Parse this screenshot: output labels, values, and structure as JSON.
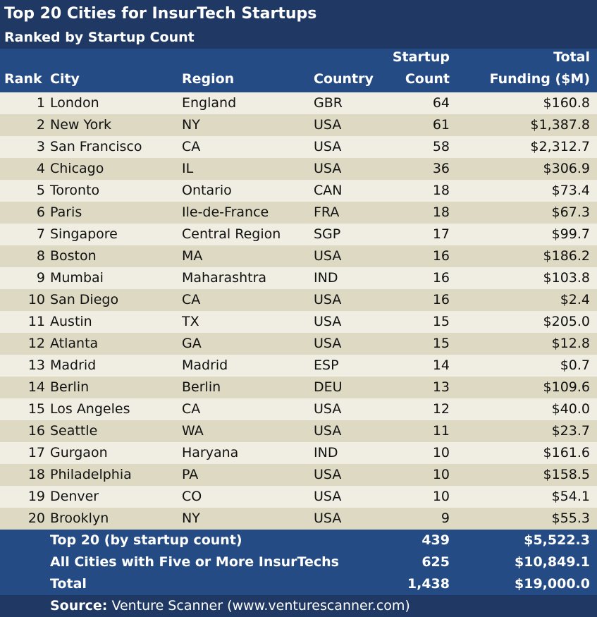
{
  "chart_data": {
    "type": "table",
    "title": "Top 20 Cities for InsurTech Startups",
    "subtitle": "Ranked by Startup Count",
    "columns": {
      "rank": "Rank",
      "city": "City",
      "region": "Region",
      "country": "Country",
      "count_line1": "Startup",
      "count_line2": "Count",
      "funding_line1": "Total",
      "funding_line2": "Funding ($M)"
    },
    "rows": [
      {
        "rank": "1",
        "city": "London",
        "region": "England",
        "country": "GBR",
        "count": "64",
        "funding": "$160.8"
      },
      {
        "rank": "2",
        "city": "New York",
        "region": "NY",
        "country": "USA",
        "count": "61",
        "funding": "$1,387.8"
      },
      {
        "rank": "3",
        "city": "San Francisco",
        "region": "CA",
        "country": "USA",
        "count": "58",
        "funding": "$2,312.7"
      },
      {
        "rank": "4",
        "city": "Chicago",
        "region": "IL",
        "country": "USA",
        "count": "36",
        "funding": "$306.9"
      },
      {
        "rank": "5",
        "city": "Toronto",
        "region": "Ontario",
        "country": "CAN",
        "count": "18",
        "funding": "$73.4"
      },
      {
        "rank": "6",
        "city": "Paris",
        "region": "Ile-de-France",
        "country": "FRA",
        "count": "18",
        "funding": "$67.3"
      },
      {
        "rank": "7",
        "city": "Singapore",
        "region": "Central Region",
        "country": "SGP",
        "count": "17",
        "funding": "$99.7"
      },
      {
        "rank": "8",
        "city": "Boston",
        "region": "MA",
        "country": "USA",
        "count": "16",
        "funding": "$186.2"
      },
      {
        "rank": "9",
        "city": "Mumbai",
        "region": "Maharashtra",
        "country": "IND",
        "count": "16",
        "funding": "$103.8"
      },
      {
        "rank": "10",
        "city": "San Diego",
        "region": "CA",
        "country": "USA",
        "count": "16",
        "funding": "$2.4"
      },
      {
        "rank": "11",
        "city": "Austin",
        "region": "TX",
        "country": "USA",
        "count": "15",
        "funding": "$205.0"
      },
      {
        "rank": "12",
        "city": "Atlanta",
        "region": "GA",
        "country": "USA",
        "count": "15",
        "funding": "$12.8"
      },
      {
        "rank": "13",
        "city": "Madrid",
        "region": "Madrid",
        "country": "ESP",
        "count": "14",
        "funding": "$0.7"
      },
      {
        "rank": "14",
        "city": "Berlin",
        "region": "Berlin",
        "country": "DEU",
        "count": "13",
        "funding": "$109.6"
      },
      {
        "rank": "15",
        "city": "Los Angeles",
        "region": "CA",
        "country": "USA",
        "count": "12",
        "funding": "$40.0"
      },
      {
        "rank": "16",
        "city": "Seattle",
        "region": "WA",
        "country": "USA",
        "count": "11",
        "funding": "$23.7"
      },
      {
        "rank": "17",
        "city": "Gurgaon",
        "region": "Haryana",
        "country": "IND",
        "count": "10",
        "funding": "$161.6"
      },
      {
        "rank": "18",
        "city": "Philadelphia",
        "region": "PA",
        "country": "USA",
        "count": "10",
        "funding": "$158.5"
      },
      {
        "rank": "19",
        "city": "Denver",
        "region": "CO",
        "country": "USA",
        "count": "10",
        "funding": "$54.1"
      },
      {
        "rank": "20",
        "city": "Brooklyn",
        "region": "NY",
        "country": "USA",
        "count": "9",
        "funding": "$55.3"
      }
    ],
    "totals": [
      {
        "label": "Top 20 (by startup count)",
        "count": "439",
        "funding": "$5,522.3"
      },
      {
        "label": "All Cities with Five or More InsurTechs",
        "count": "625",
        "funding": "$10,849.1"
      },
      {
        "label": "Total",
        "count": "1,438",
        "funding": "$19,000.0"
      }
    ],
    "source_label": "Source:",
    "source_text": "Venture Scanner (www.venturescanner.com)",
    "colors": {
      "header_dark": "#1f3864",
      "header_mid": "#254b85",
      "row_light": "#f0eee2",
      "row_dark": "#ddd9c3"
    }
  }
}
